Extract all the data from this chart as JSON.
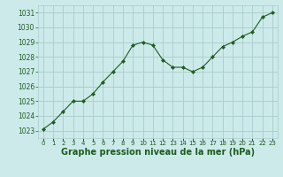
{
  "x": [
    0,
    1,
    2,
    3,
    4,
    5,
    6,
    7,
    8,
    9,
    10,
    11,
    12,
    13,
    14,
    15,
    16,
    17,
    18,
    19,
    20,
    21,
    22,
    23
  ],
  "y": [
    1023.1,
    1023.6,
    1024.3,
    1025.0,
    1025.0,
    1025.5,
    1026.3,
    1027.0,
    1027.7,
    1028.8,
    1029.0,
    1028.8,
    1027.8,
    1027.3,
    1027.3,
    1027.0,
    1027.3,
    1028.0,
    1028.7,
    1029.0,
    1029.4,
    1029.7,
    1030.7,
    1031.0
  ],
  "line_color": "#1e5c1e",
  "marker": "D",
  "marker_size": 2.2,
  "bg_color": "#cceaea",
  "grid_color": "#aacccc",
  "xlabel": "Graphe pression niveau de la mer (hPa)",
  "xlabel_fontsize": 7,
  "ylim": [
    1022.5,
    1031.5
  ],
  "xlim": [
    -0.5,
    23.5
  ],
  "yticks": [
    1023,
    1024,
    1025,
    1026,
    1027,
    1028,
    1029,
    1030,
    1031
  ],
  "xtick_labels": [
    "0",
    "1",
    "2",
    "3",
    "4",
    "5",
    "6",
    "7",
    "8",
    "9",
    "10",
    "11",
    "12",
    "13",
    "14",
    "15",
    "16",
    "17",
    "18",
    "19",
    "20",
    "21",
    "22",
    "23"
  ],
  "tick_color": "#1e5c1e",
  "ytick_fontsize": 5.5,
  "xtick_fontsize": 5.0
}
